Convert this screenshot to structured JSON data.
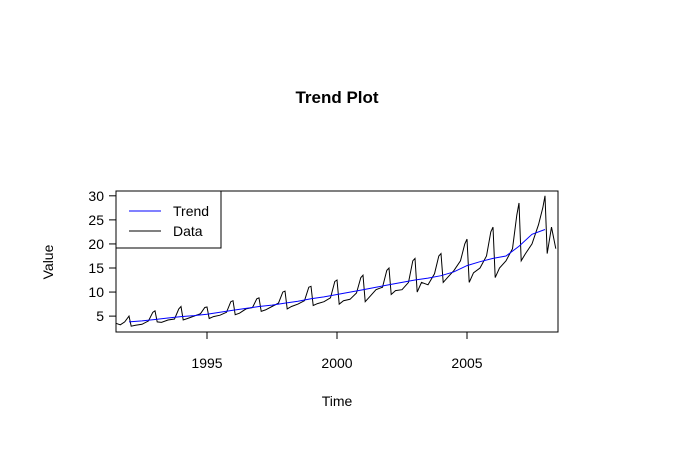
{
  "chart_data": {
    "type": "line",
    "title": "Trend Plot",
    "xlabel": "Time",
    "ylabel": "Value",
    "xlim": [
      1991.5,
      2008.5
    ],
    "ylim": [
      1.7,
      31.0
    ],
    "x_ticks": [
      1995,
      2000,
      2005
    ],
    "x_tick_labels": [
      "1995",
      "2000",
      "2005"
    ],
    "y_ticks": [
      5,
      10,
      15,
      20,
      25,
      30
    ],
    "y_tick_labels": [
      "5",
      "10",
      "15",
      "20",
      "25",
      "30"
    ],
    "grid": false,
    "legend": {
      "position": "top-left",
      "entries": [
        "Trend",
        "Data"
      ]
    },
    "series": [
      {
        "name": "Trend",
        "color": "#0000ff",
        "x": [
          1992.0,
          1992.5,
          1993.0,
          1993.5,
          1994.0,
          1994.5,
          1995.0,
          1995.5,
          1996.0,
          1996.5,
          1997.0,
          1997.5,
          1998.0,
          1998.5,
          1999.0,
          1999.5,
          2000.0,
          2000.5,
          2001.0,
          2001.5,
          2002.0,
          2002.5,
          2003.0,
          2003.5,
          2004.0,
          2004.5,
          2005.0,
          2005.5,
          2006.0,
          2006.5,
          2007.0,
          2007.5,
          2008.0
        ],
        "y": [
          3.8,
          4.0,
          4.3,
          4.6,
          4.9,
          5.1,
          5.4,
          5.8,
          6.2,
          6.6,
          7.0,
          7.3,
          7.7,
          8.1,
          8.6,
          9.0,
          9.5,
          10.0,
          10.5,
          11.0,
          11.5,
          12.0,
          12.5,
          12.9,
          13.4,
          14.2,
          15.5,
          16.3,
          17.0,
          17.5,
          19.5,
          22.0,
          23.0
        ]
      },
      {
        "name": "Data",
        "color": "#000000",
        "x": [
          1991.5,
          1991.667,
          1991.833,
          1992.0,
          1992.083,
          1992.25,
          1992.5,
          1992.75,
          1992.917,
          1993.0,
          1993.083,
          1993.25,
          1993.5,
          1993.75,
          1993.917,
          1994.0,
          1994.083,
          1994.25,
          1994.5,
          1994.75,
          1994.917,
          1995.0,
          1995.083,
          1995.25,
          1995.5,
          1995.75,
          1995.917,
          1996.0,
          1996.083,
          1996.25,
          1996.5,
          1996.75,
          1996.917,
          1997.0,
          1997.083,
          1997.25,
          1997.5,
          1997.75,
          1997.917,
          1998.0,
          1998.083,
          1998.25,
          1998.5,
          1998.75,
          1998.917,
          1999.0,
          1999.083,
          1999.25,
          1999.5,
          1999.75,
          1999.917,
          2000.0,
          2000.083,
          2000.25,
          2000.5,
          2000.75,
          2000.917,
          2001.0,
          2001.083,
          2001.25,
          2001.5,
          2001.75,
          2001.917,
          2002.0,
          2002.083,
          2002.25,
          2002.5,
          2002.75,
          2002.917,
          2003.0,
          2003.083,
          2003.25,
          2003.5,
          2003.75,
          2003.917,
          2004.0,
          2004.083,
          2004.25,
          2004.5,
          2004.75,
          2004.917,
          2005.0,
          2005.083,
          2005.25,
          2005.5,
          2005.75,
          2005.917,
          2006.0,
          2006.083,
          2006.25,
          2006.5,
          2006.75,
          2006.917,
          2007.0,
          2007.083,
          2007.25,
          2007.5,
          2007.75,
          2007.917,
          2008.0,
          2008.083,
          2008.25,
          2008.417
        ],
        "y": [
          3.5,
          3.2,
          3.8,
          5.0,
          2.9,
          3.1,
          3.3,
          4.0,
          5.8,
          6.1,
          3.8,
          3.7,
          4.2,
          4.4,
          6.5,
          7.0,
          4.2,
          4.5,
          5.0,
          5.5,
          6.8,
          6.9,
          4.5,
          4.9,
          5.2,
          5.8,
          8.0,
          8.2,
          5.3,
          5.6,
          6.5,
          6.8,
          8.6,
          8.8,
          6.0,
          6.3,
          7.0,
          7.7,
          10.0,
          10.2,
          6.5,
          7.0,
          7.5,
          8.2,
          11.0,
          11.2,
          7.2,
          7.6,
          8.0,
          8.8,
          12.2,
          12.5,
          7.5,
          8.2,
          8.5,
          9.8,
          13.0,
          13.5,
          8.0,
          9.0,
          10.5,
          11.0,
          14.5,
          15.0,
          9.5,
          10.3,
          10.5,
          12.0,
          16.5,
          17.0,
          10.0,
          12.0,
          11.5,
          13.8,
          17.5,
          18.0,
          12.0,
          13.0,
          14.5,
          16.5,
          20.0,
          21.0,
          12.0,
          14.0,
          15.0,
          17.5,
          22.5,
          23.5,
          13.0,
          15.0,
          16.5,
          19.0,
          26.0,
          28.5,
          16.5,
          18.0,
          20.0,
          24.0,
          27.5,
          30.0,
          18.0,
          23.5,
          19.0
        ]
      }
    ]
  }
}
